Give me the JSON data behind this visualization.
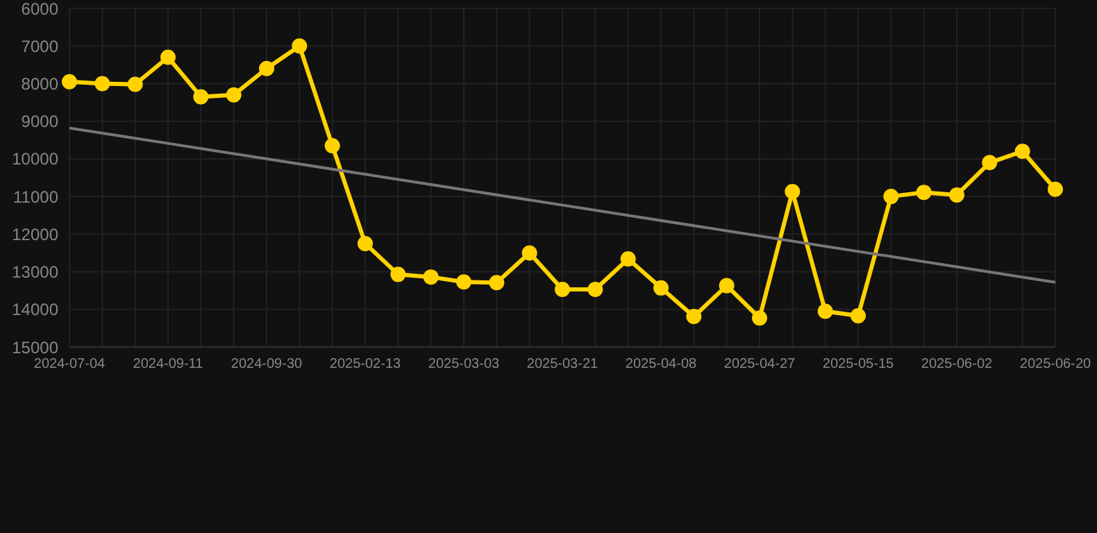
{
  "chart_data": {
    "type": "line",
    "categories": [
      "2024-07-04",
      null,
      null,
      "2024-09-11",
      null,
      null,
      "2024-09-30",
      null,
      null,
      "2025-02-13",
      null,
      null,
      "2025-03-03",
      null,
      null,
      "2025-03-21",
      null,
      null,
      "2025-04-08",
      null,
      null,
      "2025-04-27",
      null,
      null,
      "2025-05-15",
      null,
      null,
      "2025-06-02",
      null,
      null,
      "2025-06-20"
    ],
    "series": [
      {
        "color": "#ffd200",
        "marker": "circle",
        "values": [
          7950,
          8000,
          8020,
          7300,
          8350,
          8300,
          7600,
          7000,
          9650,
          12250,
          13070,
          13140,
          13270,
          13290,
          12500,
          13470,
          13470,
          12660,
          13430,
          14190,
          13370,
          14230,
          10870,
          14050,
          14170,
          11000,
          10890,
          10960,
          10100,
          9800,
          10810
        ]
      },
      {
        "color": "#777777",
        "marker": "none",
        "values": [
          9180,
          null,
          null,
          null,
          null,
          null,
          null,
          null,
          null,
          null,
          null,
          null,
          null,
          null,
          null,
          null,
          null,
          null,
          null,
          null,
          null,
          null,
          null,
          null,
          null,
          null,
          null,
          null,
          null,
          null,
          13280
        ]
      }
    ],
    "ylim": [
      15000,
      6000
    ],
    "yticks": [
      6000,
      7000,
      8000,
      9000,
      10000,
      11000,
      12000,
      13000,
      14000,
      15000
    ],
    "grid": true,
    "legend": false
  }
}
